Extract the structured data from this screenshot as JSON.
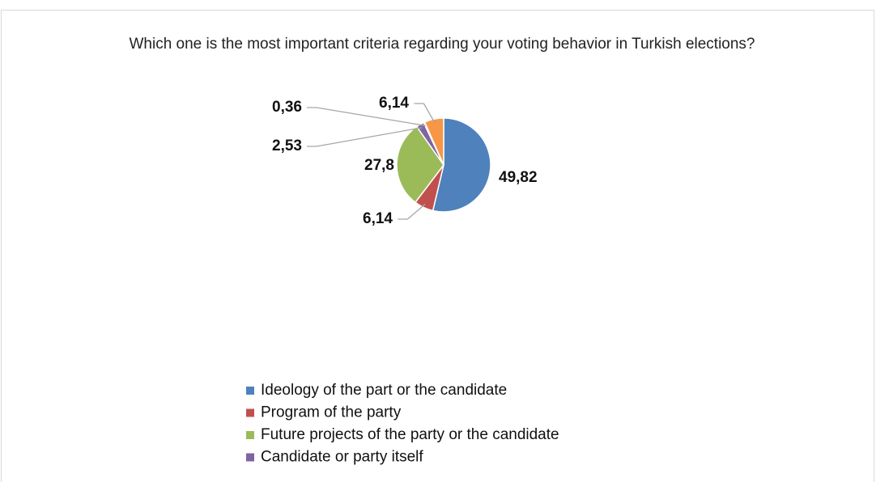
{
  "chart_data": {
    "type": "pie",
    "title": "Which one is the most important criteria regarding your voting behavior in Turkish elections?",
    "categories": [
      "Ideology of the part or the candidate",
      "Program of the party",
      "Future projects of the party or the candidate",
      "Candidate or party itself",
      null,
      null
    ],
    "values": [
      49.82,
      6.14,
      27.8,
      2.53,
      0.36,
      6.14
    ],
    "value_labels": [
      "49,82",
      "6,14",
      "27,8",
      "2,53",
      "0,36",
      "6,14"
    ],
    "colors": [
      "#4f81bd",
      "#c0504d",
      "#9bbb59",
      "#8064a2",
      "#4bacc6",
      "#f79646"
    ],
    "legend": "bottom"
  }
}
